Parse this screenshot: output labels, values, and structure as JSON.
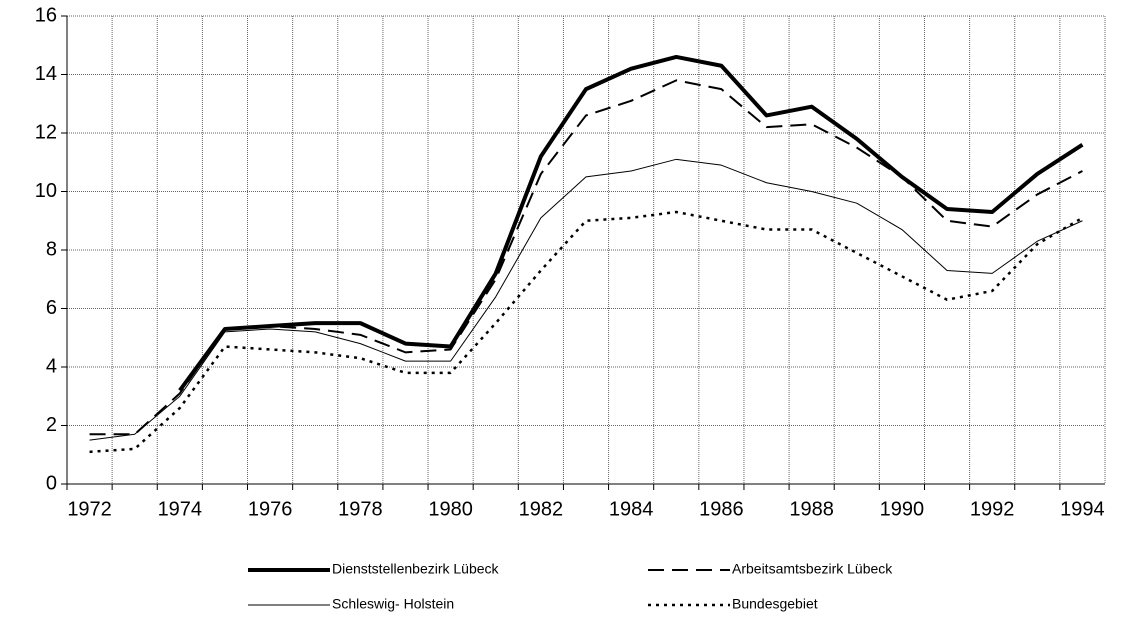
{
  "chart_data": {
    "type": "line",
    "categories": [
      "1972",
      null,
      "1974",
      null,
      "1976",
      null,
      "1978",
      null,
      "1980",
      null,
      "1982",
      null,
      "1984",
      null,
      "1986",
      null,
      "1988",
      null,
      "1990",
      null,
      "1992",
      null,
      "1994"
    ],
    "series": [
      {
        "name": "Dienststellenbezirk Lübeck",
        "color": "#000000",
        "line_width": 4,
        "dash": "none",
        "values": [
          null,
          null,
          3.2,
          5.3,
          5.4,
          5.5,
          5.5,
          4.8,
          4.7,
          7.2,
          11.2,
          13.5,
          14.2,
          14.6,
          14.3,
          12.6,
          12.9,
          11.8,
          10.5,
          9.4,
          9.3,
          10.6,
          11.6
        ]
      },
      {
        "name": "Arbeitsamtsbezirk Lübeck",
        "color": "#000000",
        "line_width": 2,
        "dash": "16 8",
        "values": [
          1.7,
          1.7,
          3.1,
          5.3,
          5.4,
          5.3,
          5.1,
          4.5,
          4.6,
          7.0,
          10.6,
          12.6,
          13.1,
          13.8,
          13.5,
          12.2,
          12.3,
          11.5,
          10.5,
          9.0,
          8.8,
          9.9,
          10.7
        ]
      },
      {
        "name": "Schleswig- Holstein",
        "color": "#000000",
        "line_width": 1,
        "dash": "none",
        "values": [
          1.5,
          1.7,
          3.0,
          5.2,
          5.3,
          5.2,
          4.8,
          4.2,
          4.2,
          6.4,
          9.1,
          10.5,
          10.7,
          11.1,
          10.9,
          10.3,
          10.0,
          9.6,
          8.7,
          7.3,
          7.2,
          8.3,
          9.0
        ]
      },
      {
        "name": "Bundesgebiet",
        "color": "#000000",
        "line_width": 2.5,
        "dash": "3 5",
        "values": [
          1.1,
          1.2,
          2.6,
          4.7,
          4.6,
          4.5,
          4.3,
          3.8,
          3.8,
          5.5,
          7.3,
          9.0,
          9.1,
          9.3,
          9.0,
          8.7,
          8.7,
          7.9,
          7.1,
          6.3,
          6.6,
          8.2,
          9.1
        ]
      }
    ],
    "ylim": [
      0,
      16
    ],
    "yticks": [
      0,
      2,
      4,
      6,
      8,
      10,
      12,
      14,
      16
    ],
    "grid": true
  }
}
